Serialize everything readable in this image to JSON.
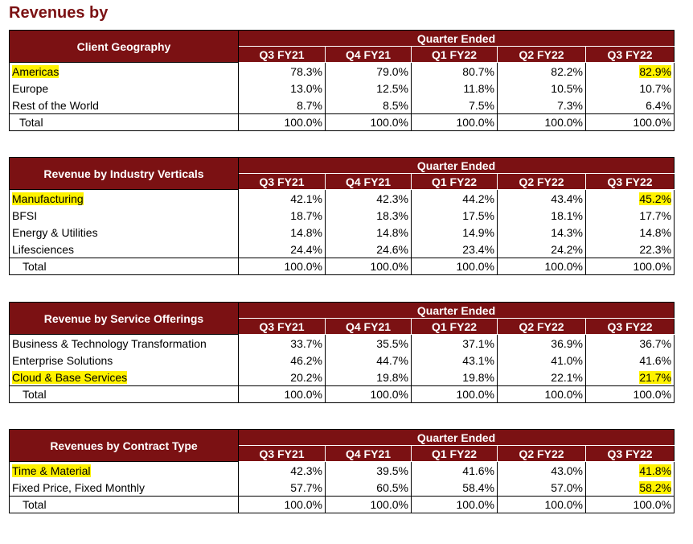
{
  "page_title": "Revenues by",
  "quarter_header": "Quarter Ended",
  "columns": [
    "Q3 FY21",
    "Q4 FY21",
    "Q1 FY22",
    "Q2 FY22",
    "Q3 FY22"
  ],
  "highlight_color": "#fff200",
  "header_color": "#7b1113",
  "tables": [
    {
      "title": "Client Geography",
      "rows": [
        {
          "label": "Americas",
          "values": [
            "78.3%",
            "79.0%",
            "80.7%",
            "82.2%",
            "82.9%"
          ]
        },
        {
          "label": "Europe",
          "values": [
            "13.0%",
            "12.5%",
            "11.8%",
            "10.5%",
            "10.7%"
          ]
        },
        {
          "label": "Rest of the World",
          "values": [
            "8.7%",
            "8.5%",
            "7.5%",
            "7.3%",
            "6.4%"
          ]
        }
      ],
      "total": {
        "label": "Total",
        "values": [
          "100.0%",
          "100.0%",
          "100.0%",
          "100.0%",
          "100.0%"
        ]
      }
    },
    {
      "title": "Revenue by Industry Verticals",
      "rows": [
        {
          "label": "Manufacturing",
          "values": [
            "42.1%",
            "42.3%",
            "44.2%",
            "43.4%",
            "45.2%"
          ]
        },
        {
          "label": "BFSI",
          "values": [
            "18.7%",
            "18.3%",
            "17.5%",
            "18.1%",
            "17.7%"
          ]
        },
        {
          "label": "Energy & Utilities",
          "values": [
            "14.8%",
            "14.8%",
            "14.9%",
            "14.3%",
            "14.8%"
          ]
        },
        {
          "label": "Lifesciences",
          "values": [
            "24.4%",
            "24.6%",
            "23.4%",
            "24.2%",
            "22.3%"
          ]
        }
      ],
      "total": {
        "label": "Total",
        "values": [
          "100.0%",
          "100.0%",
          "100.0%",
          "100.0%",
          "100.0%"
        ]
      }
    },
    {
      "title": "Revenue by Service Offerings",
      "rows": [
        {
          "label": "Business & Technology Transformation",
          "values": [
            "33.7%",
            "35.5%",
            "37.1%",
            "36.9%",
            "36.7%"
          ]
        },
        {
          "label": "Enterprise Solutions",
          "values": [
            "46.2%",
            "44.7%",
            "43.1%",
            "41.0%",
            "41.6%"
          ]
        },
        {
          "label": "Cloud & Base Services",
          "values": [
            "20.2%",
            "19.8%",
            "19.8%",
            "22.1%",
            "21.7%"
          ]
        }
      ],
      "total": {
        "label": "Total",
        "values": [
          "100.0%",
          "100.0%",
          "100.0%",
          "100.0%",
          "100.0%"
        ]
      }
    },
    {
      "title": "Revenues by Contract Type",
      "rows": [
        {
          "label": "Time & Material",
          "values": [
            "42.3%",
            "39.5%",
            "41.6%",
            "43.0%",
            "41.8%"
          ]
        },
        {
          "label": "Fixed Price, Fixed Monthly",
          "values": [
            "57.7%",
            "60.5%",
            "58.4%",
            "57.0%",
            "58.2%"
          ]
        }
      ],
      "total": {
        "label": "Total",
        "values": [
          "100.0%",
          "100.0%",
          "100.0%",
          "100.0%",
          "100.0%"
        ]
      }
    }
  ]
}
